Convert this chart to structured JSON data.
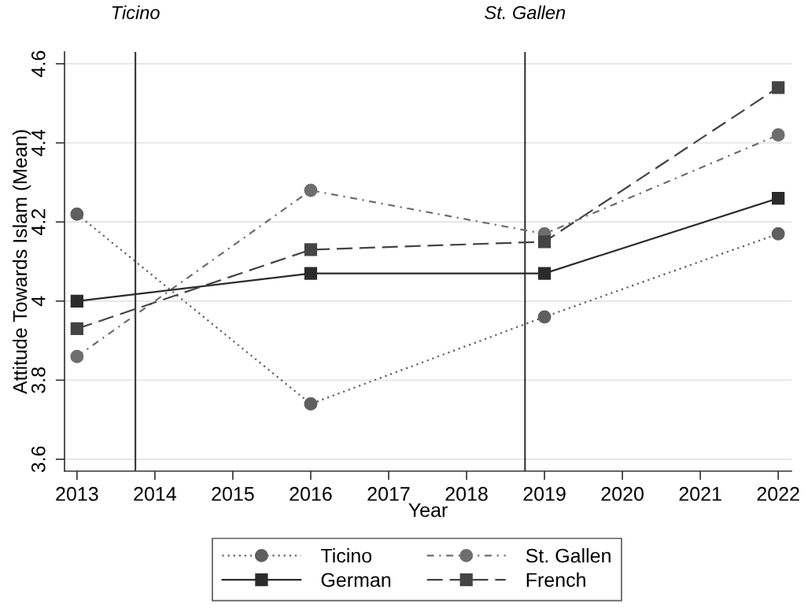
{
  "chart_data": {
    "type": "line",
    "xlabel": "Year",
    "ylabel": "Attitude Towards Islam (Mean)",
    "x": [
      2013,
      2016,
      2019,
      2022
    ],
    "xlim": [
      2012.84,
      2022.17
    ],
    "xticks": [
      2013,
      2014,
      2015,
      2016,
      2017,
      2018,
      2019,
      2020,
      2021,
      2022
    ],
    "ylim": [
      3.57,
      4.63
    ],
    "yticks": [
      3.6,
      3.8,
      4,
      4.2,
      4.4,
      4.6
    ],
    "grid": "y",
    "legend": "bottom",
    "series": [
      {
        "name": "Ticino",
        "color": "#5f5f5f",
        "values": [
          4.22,
          3.74,
          3.96,
          4.17
        ],
        "marker": "circle",
        "line_style": "dotted"
      },
      {
        "name": "St. Gallen",
        "color": "#6e6e6e",
        "values": [
          3.86,
          4.28,
          4.17,
          4.42
        ],
        "marker": "circle",
        "line_style": "dashdot"
      },
      {
        "name": "German",
        "color": "#2b2b2b",
        "values": [
          4.0,
          4.07,
          4.07,
          4.26
        ],
        "marker": "square",
        "line_style": "solid"
      },
      {
        "name": "French",
        "color": "#444444",
        "values": [
          3.93,
          4.13,
          4.15,
          4.54
        ],
        "marker": "square",
        "line_style": "dashed"
      }
    ],
    "ref_lines": [
      {
        "axis": "x",
        "value": 2013.75,
        "label": "Ticino",
        "color": "#333333",
        "line_style": "solid"
      },
      {
        "axis": "x",
        "value": 2018.75,
        "label": "St. Gallen",
        "color": "#333333",
        "line_style": "solid"
      }
    ]
  }
}
